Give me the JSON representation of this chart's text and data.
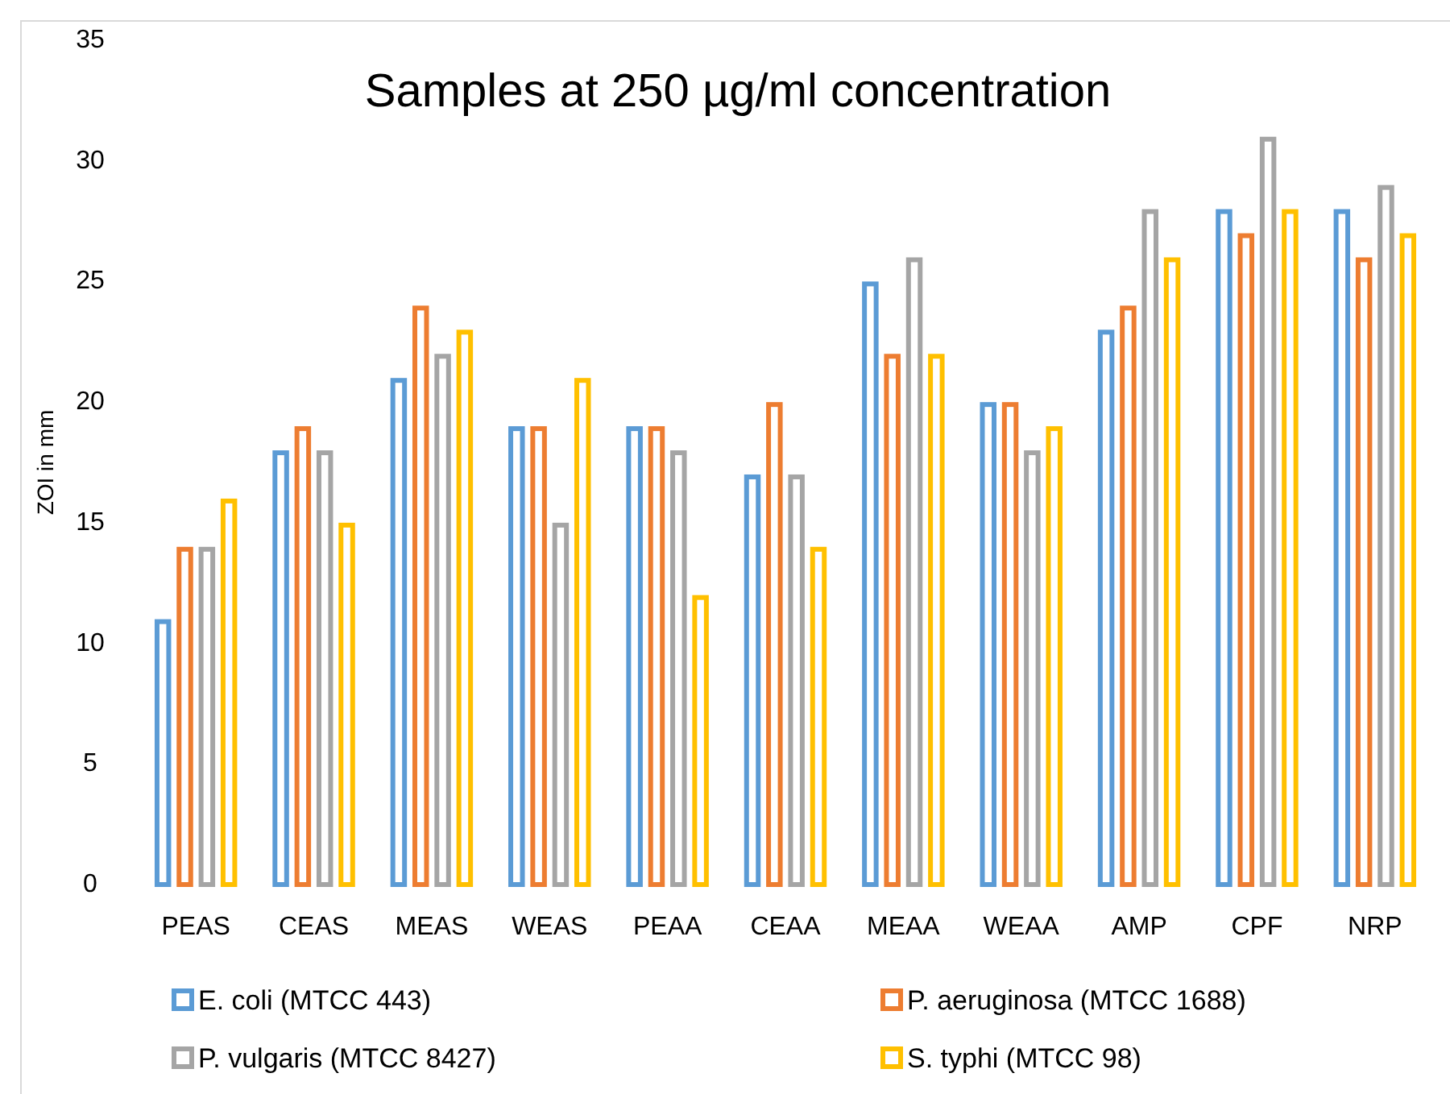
{
  "chart_data": {
    "type": "bar",
    "title": "Samples at 250 µg/ml concentration",
    "ylabel": "ZOI in mm",
    "categories": [
      "PEAS",
      "CEAS",
      "MEAS",
      "WEAS",
      "PEAA",
      "CEAA",
      "MEAA",
      "WEAA",
      "AMP",
      "CPF",
      "NRP"
    ],
    "series": [
      {
        "name": "E. coli (MTCC 443)",
        "color": "#5b9bd5",
        "values": [
          11,
          18,
          21,
          19,
          19,
          17,
          25,
          20,
          23,
          28,
          28
        ]
      },
      {
        "name": "P. aeruginosa (MTCC 1688)",
        "color": "#ed7d31",
        "values": [
          14,
          19,
          24,
          19,
          19,
          20,
          22,
          20,
          24,
          27,
          26
        ]
      },
      {
        "name": "P. vulgaris (MTCC  8427)",
        "color": "#a5a5a5",
        "values": [
          14,
          18,
          22,
          15,
          18,
          17,
          26,
          18,
          28,
          31,
          29
        ]
      },
      {
        "name": "S. typhi (MTCC  98)",
        "color": "#ffc000",
        "values": [
          16,
          15,
          23,
          21,
          12,
          14,
          22,
          19,
          26,
          28,
          27
        ]
      }
    ],
    "ylim": [
      0,
      35
    ],
    "yticks": [
      0,
      5,
      10,
      15,
      20,
      25,
      30,
      35
    ],
    "grid": false,
    "legend": "bottom"
  }
}
